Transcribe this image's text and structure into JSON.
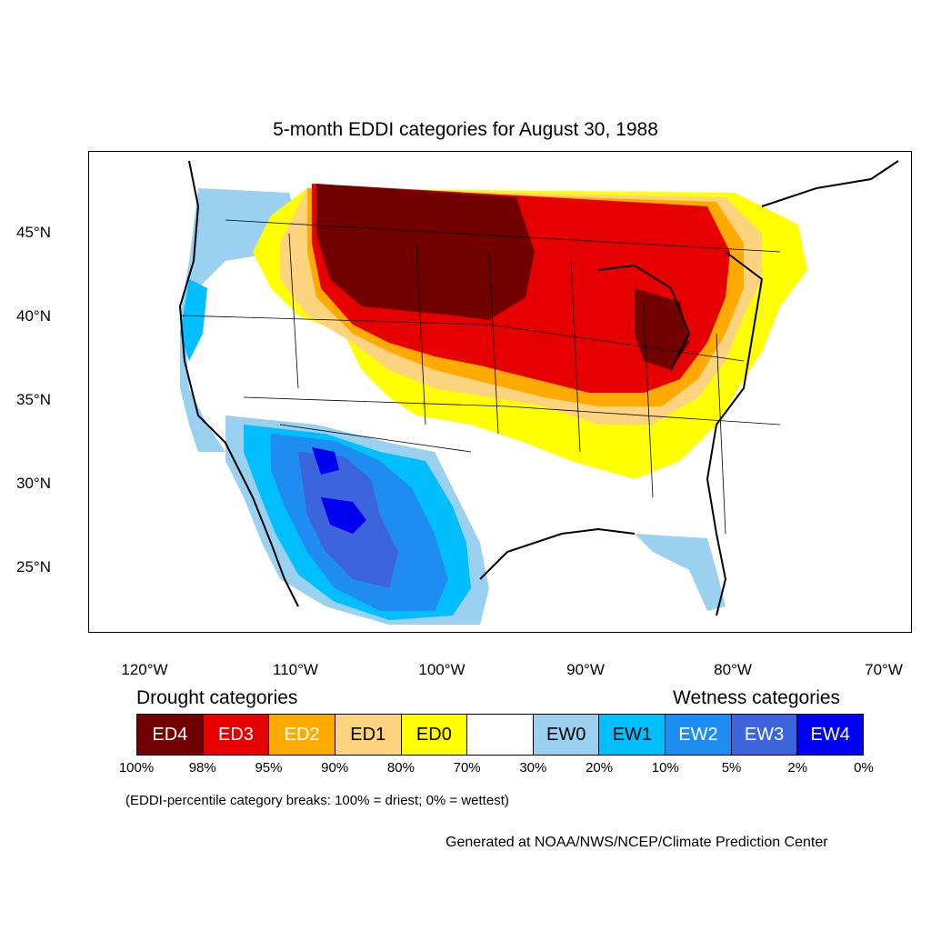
{
  "title": "5-month EDDI categories for August 30, 1988",
  "lat_labels": [
    "45°N",
    "40°N",
    "35°N",
    "30°N",
    "25°N"
  ],
  "lon_labels": [
    "120°W",
    "110°W",
    "100°W",
    "90°W",
    "80°W",
    "70°W"
  ],
  "legend": {
    "drought_heading": "Drought categories",
    "wetness_heading": "Wetness categories",
    "categories": [
      {
        "label": "ED4",
        "color": "#730000"
      },
      {
        "label": "ED3",
        "color": "#e60000"
      },
      {
        "label": "ED2",
        "color": "#ffaa00"
      },
      {
        "label": "ED1",
        "color": "#fcd37f"
      },
      {
        "label": "ED0",
        "color": "#ffff00"
      },
      {
        "label": "",
        "color": "#ffffff"
      },
      {
        "label": "EW0",
        "color": "#9ad0f0"
      },
      {
        "label": "EW1",
        "color": "#00bfff"
      },
      {
        "label": "EW2",
        "color": "#1e8cf0"
      },
      {
        "label": "EW3",
        "color": "#3c64dc"
      },
      {
        "label": "EW4",
        "color": "#0000f0"
      }
    ],
    "breaks": [
      "100%",
      "98%",
      "95%",
      "90%",
      "80%",
      "70%",
      "30%",
      "20%",
      "10%",
      "5%",
      "2%",
      "0%"
    ],
    "note": "(EDDI-percentile category breaks: 100% = driest; 0% = wettest)"
  },
  "credit": "Generated at NOAA/NWS/NCEP/Climate Prediction Center"
}
